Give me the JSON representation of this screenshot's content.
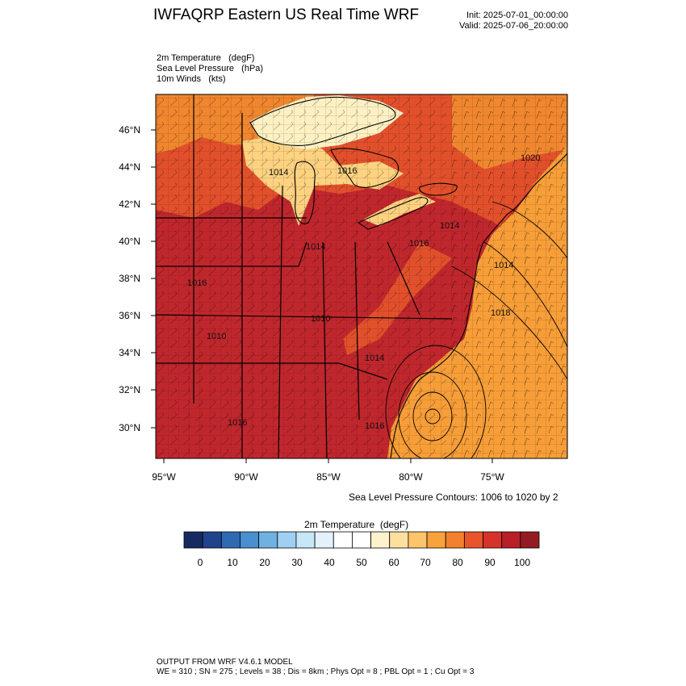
{
  "header": {
    "title": "IWFAQRP Eastern US Real Time WRF",
    "init": "Init: 2025-07-01_00:00:00",
    "valid": "Valid: 2025-07-06_20:00:00"
  },
  "fields": [
    {
      "name": "2m Temperature",
      "unit": "(degF)"
    },
    {
      "name": "Sea Level Pressure",
      "unit": "(hPa)"
    },
    {
      "name": "10m Winds",
      "unit": "(kts)"
    }
  ],
  "map": {
    "lat_labels": [
      "46°N",
      "44°N",
      "42°N",
      "40°N",
      "38°N",
      "36°N",
      "34°N",
      "32°N",
      "30°N"
    ],
    "lon_labels": [
      "95°W",
      "90°W",
      "85°W",
      "80°W",
      "75°W"
    ],
    "pressure_labels": [
      "1014",
      "1016",
      "1020",
      "1014",
      "1016",
      "1014",
      "1016",
      "1010",
      "1010",
      "1014",
      "1016",
      "1016",
      "1018",
      "1014"
    ],
    "colors": {
      "hot": "#c0272d",
      "warm": "#e2502b",
      "mild": "#f0862f",
      "ocean": "#f79e38",
      "cool": "#fdd280",
      "cold": "#fdf0c2"
    }
  },
  "contour_note": "Sea Level Pressure Contours: 1006 to 1020 by 2",
  "colorbar": {
    "title": "2m Temperature  (degF)",
    "colors": [
      "#162a62",
      "#21438d",
      "#2f69b2",
      "#4a8fcf",
      "#6fb1e3",
      "#9fd0f3",
      "#c7e6f7",
      "#e3f2fa",
      "#ffffff",
      "#ffffff",
      "#fef2cc",
      "#fde0a0",
      "#fcc46b",
      "#f9a23c",
      "#f47f2c",
      "#e8552a",
      "#d6342a",
      "#b91f27",
      "#931c22"
    ],
    "tick_labels": [
      "0",
      "10",
      "20",
      "30",
      "40",
      "50",
      "60",
      "70",
      "80",
      "90",
      "100"
    ]
  },
  "footer": {
    "line1": "OUTPUT FROM WRF V4.6.1 MODEL",
    "line2": "WE = 310 ; SN = 275 ; Levels = 38 ; Dis = 8km ; Phys Opt = 8 ; PBL Opt = 1 ; Cu Opt = 3"
  }
}
